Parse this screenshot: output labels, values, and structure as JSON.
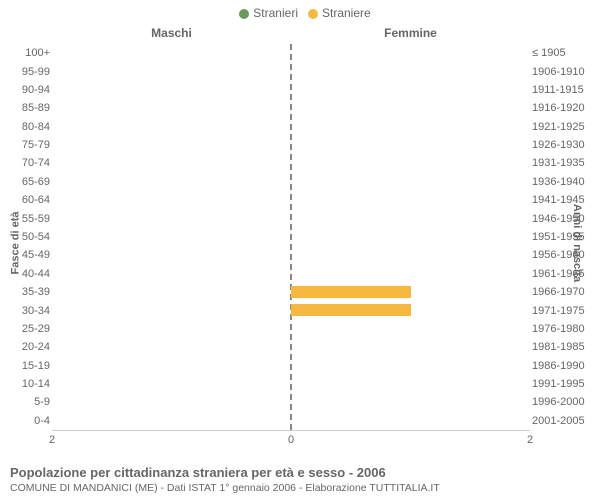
{
  "chart": {
    "type": "population-pyramid",
    "title": "Popolazione per cittadinanza straniera per età e sesso - 2006",
    "source": "COMUNE DI MANDANICI (ME) - Dati ISTAT 1° gennaio 2006 - Elaborazione TUTTITALIA.IT",
    "legend": [
      {
        "label": "Stranieri",
        "color": "#6a9a5b"
      },
      {
        "label": "Straniere",
        "color": "#f5b942"
      }
    ],
    "subtitle_left": "Maschi",
    "subtitle_right": "Femmine",
    "y_axis_left_title": "Fasce di età",
    "y_axis_right_title": "Anni di nascita",
    "x_max": 2,
    "x_ticks_left": [
      2,
      0
    ],
    "x_ticks_right": [
      0,
      2
    ],
    "background_color": "#ffffff",
    "grid_color": "#cccccc",
    "center_line_color": "#888888",
    "label_color": "#666666",
    "label_fontsize": 11,
    "title_fontsize": 13,
    "male_color": "#6a9a5b",
    "female_color": "#f5b942",
    "age_groups": [
      {
        "age": "100+",
        "birth": "≤ 1905",
        "male": 0,
        "female": 0
      },
      {
        "age": "95-99",
        "birth": "1906-1910",
        "male": 0,
        "female": 0
      },
      {
        "age": "90-94",
        "birth": "1911-1915",
        "male": 0,
        "female": 0
      },
      {
        "age": "85-89",
        "birth": "1916-1920",
        "male": 0,
        "female": 0
      },
      {
        "age": "80-84",
        "birth": "1921-1925",
        "male": 0,
        "female": 0
      },
      {
        "age": "75-79",
        "birth": "1926-1930",
        "male": 0,
        "female": 0
      },
      {
        "age": "70-74",
        "birth": "1931-1935",
        "male": 0,
        "female": 0
      },
      {
        "age": "65-69",
        "birth": "1936-1940",
        "male": 0,
        "female": 0
      },
      {
        "age": "60-64",
        "birth": "1941-1945",
        "male": 0,
        "female": 0
      },
      {
        "age": "55-59",
        "birth": "1946-1950",
        "male": 0,
        "female": 0
      },
      {
        "age": "50-54",
        "birth": "1951-1955",
        "male": 0,
        "female": 0
      },
      {
        "age": "45-49",
        "birth": "1956-1960",
        "male": 0,
        "female": 0
      },
      {
        "age": "40-44",
        "birth": "1961-1965",
        "male": 0,
        "female": 0
      },
      {
        "age": "35-39",
        "birth": "1966-1970",
        "male": 0,
        "female": 1
      },
      {
        "age": "30-34",
        "birth": "1971-1975",
        "male": 0,
        "female": 1
      },
      {
        "age": "25-29",
        "birth": "1976-1980",
        "male": 0,
        "female": 0
      },
      {
        "age": "20-24",
        "birth": "1981-1985",
        "male": 0,
        "female": 0
      },
      {
        "age": "15-19",
        "birth": "1986-1990",
        "male": 0,
        "female": 0
      },
      {
        "age": "10-14",
        "birth": "1991-1995",
        "male": 0,
        "female": 0
      },
      {
        "age": "5-9",
        "birth": "1996-2000",
        "male": 0,
        "female": 0
      },
      {
        "age": "0-4",
        "birth": "2001-2005",
        "male": 0,
        "female": 0
      }
    ]
  }
}
